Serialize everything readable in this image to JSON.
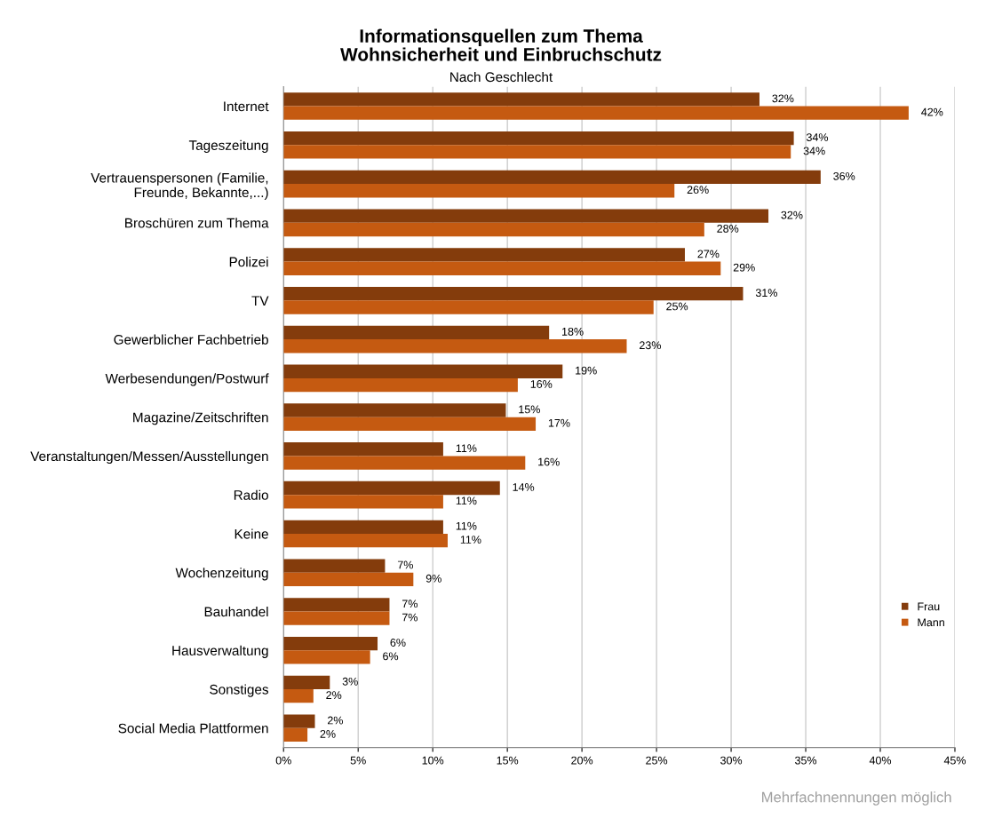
{
  "chart_data": {
    "type": "bar",
    "orientation": "horizontal",
    "title": "Informationsquellen zum Thema\nWohnsicherheit und Einbruchschutz",
    "subtitle": "Nach Geschlecht",
    "categories": [
      "Internet",
      "Tageszeitung",
      "Vertrauenspersonen (Familie, Freunde, Bekannte,...)",
      "Broschüren zum Thema",
      "Polizei",
      "TV",
      "Gewerblicher Fachbetrieb",
      "Werbesendungen/Postwurf",
      "Magazine/Zeitschriften",
      "Veranstaltungen/Messen/Ausstellungen",
      "Radio",
      "Keine",
      "Wochenzeitung",
      "Bauhandel",
      "Hausverwaltung",
      "Sonstiges",
      "Social Media Plattformen"
    ],
    "series": [
      {
        "name": "Frau",
        "color": "#843c0c",
        "values": [
          31.9,
          34.2,
          36.0,
          32.5,
          26.9,
          30.8,
          17.8,
          18.7,
          14.9,
          10.7,
          14.5,
          10.7,
          6.8,
          7.1,
          6.3,
          3.1,
          2.1
        ],
        "value_labels": [
          "32%",
          "34%",
          "36%",
          "32%",
          "27%",
          "31%",
          "18%",
          "19%",
          "15%",
          "11%",
          "14%",
          "11%",
          "7%",
          "7%",
          "6%",
          "3%",
          "2%"
        ]
      },
      {
        "name": "Mann",
        "color": "#c55a11",
        "values": [
          41.9,
          34.0,
          26.2,
          28.2,
          29.3,
          24.8,
          23.0,
          15.7,
          16.9,
          16.2,
          10.7,
          11.0,
          8.7,
          7.1,
          5.8,
          2.0,
          1.6
        ],
        "value_labels": [
          "42%",
          "34%",
          "26%",
          "28%",
          "29%",
          "25%",
          "23%",
          "16%",
          "17%",
          "16%",
          "11%",
          "11%",
          "9%",
          "7%",
          "6%",
          "2%",
          "2%"
        ]
      }
    ],
    "xlim": [
      0,
      45
    ],
    "xticks": [
      {
        "value": 0,
        "label": "0%"
      },
      {
        "value": 5,
        "label": "5%"
      },
      {
        "value": 10,
        "label": "10%"
      },
      {
        "value": 15,
        "label": "15%"
      },
      {
        "value": 20,
        "label": "20%"
      },
      {
        "value": 25,
        "label": "25%"
      },
      {
        "value": 30,
        "label": "30%"
      },
      {
        "value": 35,
        "label": "35%"
      },
      {
        "value": 40,
        "label": "40%"
      },
      {
        "value": 45,
        "label": "45%"
      }
    ],
    "grid": "x",
    "legend": "right",
    "annotations": [
      "Mehrfachnennungen möglich"
    ]
  }
}
